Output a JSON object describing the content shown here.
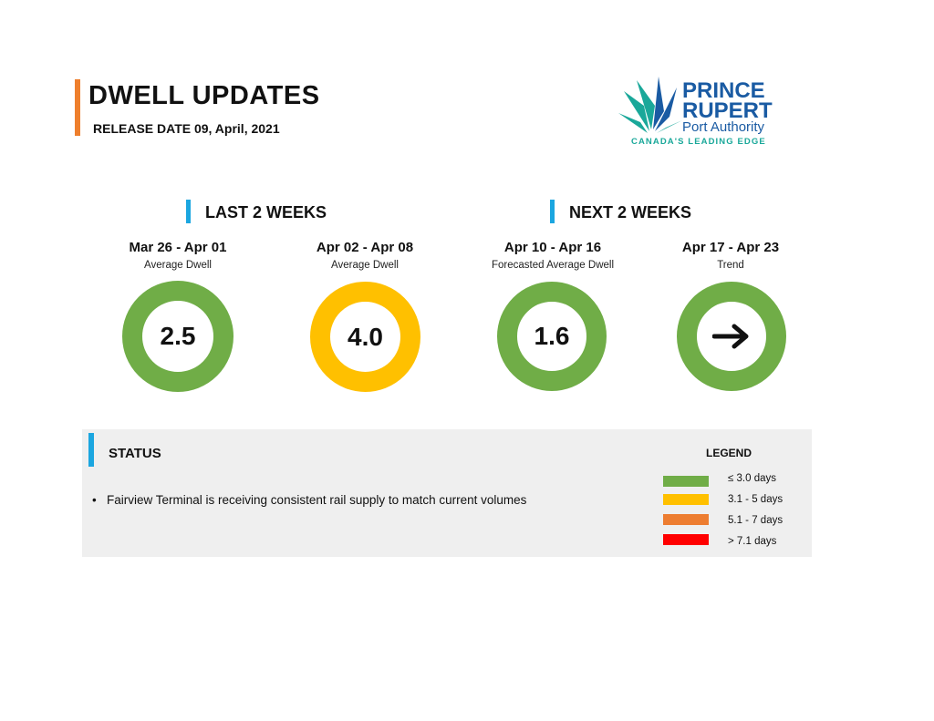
{
  "header": {
    "title": "DWELL UPDATES",
    "release_date": "RELEASE DATE 09, April, 2021",
    "accent_color": "#ee7f2d"
  },
  "logo": {
    "line1": "PRINCE",
    "line2": "RUPERT",
    "line3": "Port Authority",
    "tagline": "CANADA'S LEADING EDGE",
    "color_blue": "#1a5ba3",
    "color_teal": "#1aa89a"
  },
  "sections": {
    "last": {
      "title": "LAST 2 WEEKS"
    },
    "next": {
      "title": "NEXT 2 WEEKS"
    },
    "accent_color": "#1ba6e0"
  },
  "weeks": [
    {
      "range": "Mar 26 - Apr 01",
      "label": "Average Dwell",
      "value": "2.5",
      "color": "#70ad47"
    },
    {
      "range": "Apr 02 - Apr 08",
      "label": "Average Dwell",
      "value": "4.0",
      "color": "#ffc000"
    },
    {
      "range": "Apr 10 - Apr 16",
      "label": "Forecasted Average Dwell",
      "value": "1.6",
      "color": "#70ad47"
    },
    {
      "range": "Apr 17 - Apr 23",
      "label": "Trend",
      "icon": "arrow-right-icon",
      "color": "#70ad47"
    }
  ],
  "status": {
    "title": "STATUS",
    "items": [
      "Fairview Terminal is receiving consistent rail supply to match current volumes"
    ]
  },
  "legend": {
    "title": "LEGEND",
    "entries": [
      {
        "label": "≤ 3.0 days",
        "color": "#70ad47"
      },
      {
        "label": "3.1 - 5 days",
        "color": "#ffc000"
      },
      {
        "label": "5.1 - 7 days",
        "color": "#ed7d31"
      },
      {
        "label": "> 7.1 days",
        "color": "#ff0000"
      }
    ]
  }
}
